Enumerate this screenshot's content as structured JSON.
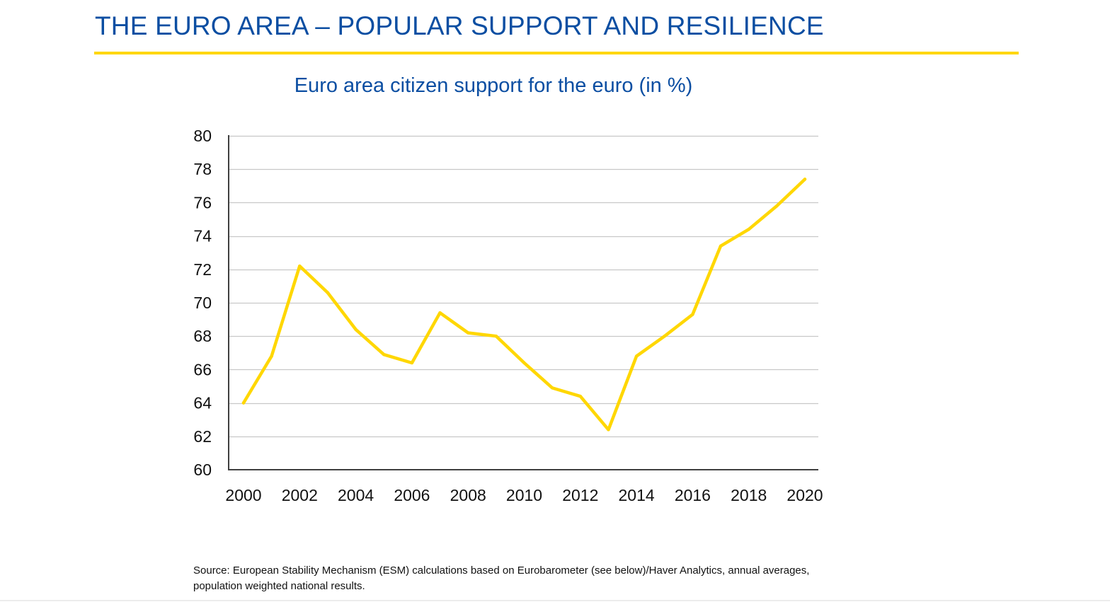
{
  "slide": {
    "title": "THE EURO AREA – POPULAR SUPPORT AND RESILIENCE",
    "accent_color": "#ffd700",
    "title_color": "#0b4ea2"
  },
  "chart_data": {
    "type": "line",
    "title": "Euro area citizen support for the euro (in %)",
    "xlabel": "",
    "ylabel": "",
    "xlim": [
      2000,
      2020
    ],
    "ylim": [
      60,
      80
    ],
    "x_ticks": [
      2000,
      2002,
      2004,
      2006,
      2008,
      2010,
      2012,
      2014,
      2016,
      2018,
      2020
    ],
    "y_ticks": [
      60,
      62,
      64,
      66,
      68,
      70,
      72,
      74,
      76,
      78,
      80
    ],
    "grid": "horizontal",
    "legend": "none",
    "x": [
      2000,
      2001,
      2002,
      2003,
      2004,
      2005,
      2006,
      2007,
      2008,
      2009,
      2010,
      2011,
      2012,
      2013,
      2014,
      2015,
      2016,
      2017,
      2018,
      2019,
      2020
    ],
    "series": [
      {
        "color": "#ffd700",
        "values": [
          64.0,
          66.8,
          72.2,
          70.6,
          68.4,
          66.9,
          66.4,
          69.4,
          68.2,
          68.0,
          66.4,
          64.9,
          64.4,
          62.4,
          66.8,
          68.0,
          69.3,
          73.4,
          74.4,
          75.8,
          77.4
        ]
      }
    ]
  },
  "source": {
    "text": "Source: European Stability Mechanism (ESM) calculations based on Eurobarometer (see below)/Haver Analytics, annual averages, population weighted national results."
  }
}
